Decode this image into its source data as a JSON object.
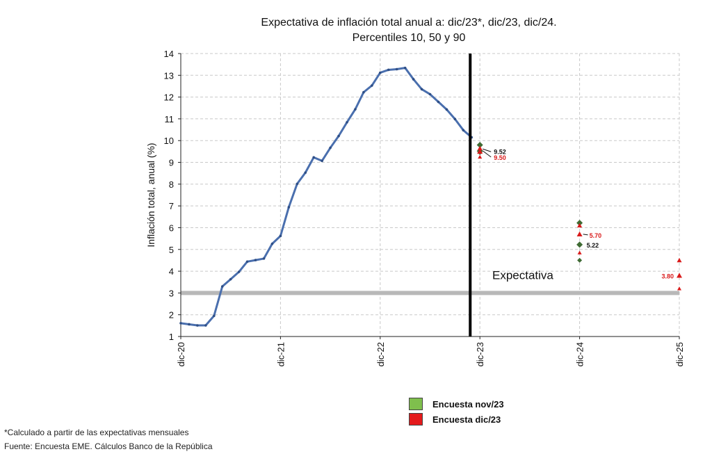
{
  "title_line1": "Expectativa de inflación total anual a: dic/23*, dic/23, dic/24.",
  "title_line2": "Percentiles 10, 50 y 90",
  "colors": {
    "line": "#4a6fae",
    "nov23": "#3f6b34",
    "dic23": "#d91a1a",
    "target": "#b8b8b8",
    "divider": "#000000"
  },
  "legend": [
    {
      "label": "Encuesta nov/23",
      "color": "#7fbf4d"
    },
    {
      "label": "Encuesta dic/23",
      "color": "#e41a1c"
    }
  ],
  "footnote": "*Calculado a partir de las expectativas mensuales",
  "source": "Fuente: Encuesta EME. Cálculos Banco de la República",
  "chart_data": {
    "type": "line",
    "ylabel": "Inflación total, anual (%)",
    "ylim": [
      1,
      14
    ],
    "yticks": [
      1,
      2,
      3,
      4,
      5,
      6,
      7,
      8,
      9,
      10,
      11,
      12,
      13,
      14
    ],
    "xlim": [
      0,
      60
    ],
    "xticks": [
      {
        "x": 0,
        "label": "dic-20"
      },
      {
        "x": 12,
        "label": "dic-21"
      },
      {
        "x": 24,
        "label": "dic-22"
      },
      {
        "x": 36,
        "label": "dic-23"
      },
      {
        "x": 48,
        "label": "dic-24"
      },
      {
        "x": 60,
        "label": "dic-25"
      }
    ],
    "grid": true,
    "target_line": 3.0,
    "divider_x": 35,
    "divider_label": "Expectativa",
    "series": [
      {
        "values": [
          1.61,
          1.56,
          1.51,
          1.51,
          1.95,
          3.3,
          3.63,
          3.97,
          4.44,
          4.51,
          4.58,
          5.26,
          5.62,
          6.94,
          8.01,
          8.53,
          9.23,
          9.07,
          9.67,
          10.21,
          10.84,
          11.44,
          12.22,
          12.53,
          13.12,
          13.25,
          13.28,
          13.34,
          12.82,
          12.36,
          12.13,
          11.78,
          11.43,
          10.99,
          10.48,
          10.15
        ]
      }
    ],
    "expectations": [
      {
        "survey": "Encuesta nov/23",
        "x": 36,
        "p10": 9.45,
        "p50": 9.52,
        "p90": 9.8,
        "label": "9.52"
      },
      {
        "survey": "Encuesta dic/23",
        "x": 36,
        "p10": 9.25,
        "p50": 9.5,
        "p90": 9.65,
        "label": "9.50"
      },
      {
        "survey": "Encuesta nov/23",
        "x": 48,
        "p10": 4.5,
        "p50": 5.22,
        "p90": 6.22,
        "label": "5.22"
      },
      {
        "survey": "Encuesta dic/23",
        "x": 48,
        "p10": 4.85,
        "p50": 5.7,
        "p90": 6.1,
        "label": "5.70"
      },
      {
        "survey": "Encuesta dic/23",
        "x": 60,
        "p10": 3.2,
        "p50": 3.8,
        "p90": 4.5,
        "label": "3.80"
      }
    ]
  }
}
